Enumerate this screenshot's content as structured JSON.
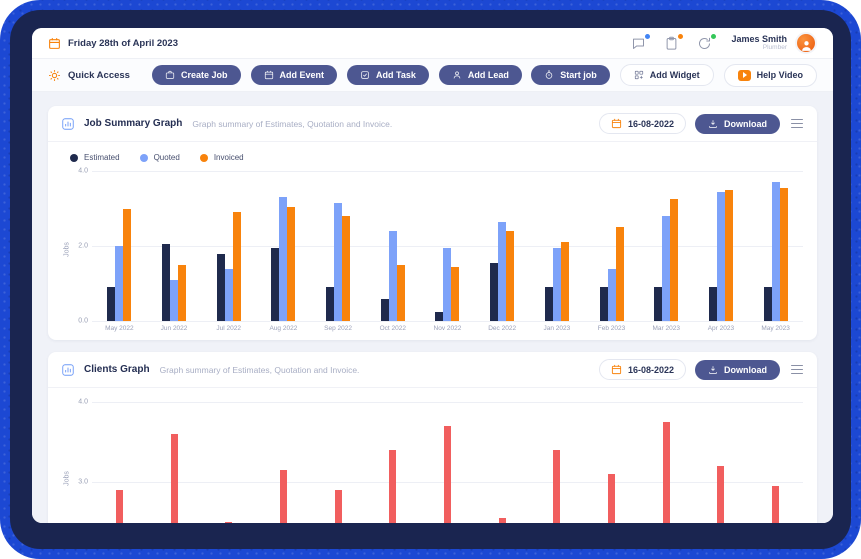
{
  "topbar": {
    "date_label": "Friday 28th of April 2023",
    "notification_icons": [
      {
        "name": "chat",
        "badge_color": "#4285f4"
      },
      {
        "name": "clipboard",
        "badge_color": "#f8830c"
      },
      {
        "name": "refresh",
        "badge_color": "#34c759"
      }
    ],
    "user": {
      "name": "James Smith",
      "role": "Plumber"
    }
  },
  "toolbar": {
    "quick_access_label": "Quick Access",
    "left_buttons": [
      {
        "label": "Create Job",
        "icon": "briefcase"
      },
      {
        "label": "Add Event",
        "icon": "calendar"
      },
      {
        "label": "Add Task",
        "icon": "task-check"
      },
      {
        "label": "Add Lead",
        "icon": "person"
      }
    ],
    "start_job_label": "Start job",
    "add_widget_label": "Add Widget",
    "help_video_label": "Help Video"
  },
  "job_summary_card": {
    "title": "Job Summary Graph",
    "subtitle": "Graph summary of Estimates, Quotation and Invoice.",
    "date_value": "16-08-2022",
    "download_label": "Download",
    "legend": [
      {
        "label": "Estimated",
        "color": "#1f2a4d"
      },
      {
        "label": "Quoted",
        "color": "#7da2f9"
      },
      {
        "label": "Invoiced",
        "color": "#f8830c"
      }
    ]
  },
  "clients_card": {
    "title": "Clients Graph",
    "subtitle": "Graph summary of Estimates, Quotation and Invoice.",
    "date_value": "16-08-2022",
    "download_label": "Download"
  },
  "chart_data": [
    {
      "type": "bar",
      "title": "Job Summary Graph",
      "ylabel": "Jobs",
      "ylim": [
        0,
        4
      ],
      "yticks": [
        "4.0",
        "2.0",
        "0.0"
      ],
      "grid": true,
      "legend_position": "top-left",
      "categories": [
        "May 2022",
        "Jun 2022",
        "Jul 2022",
        "Aug 2022",
        "Sep 2022",
        "Oct 2022",
        "Nov 2022",
        "Dec 2022",
        "Jan 2023",
        "Feb 2023",
        "Mar 2023",
        "Apr 2023",
        "May 2023"
      ],
      "series": [
        {
          "name": "Estimated",
          "color": "#1f2a4d",
          "values": [
            0.9,
            2.05,
            1.8,
            1.95,
            0.9,
            0.6,
            0.25,
            1.55,
            0.9,
            0.9,
            0.9,
            0.9,
            0.9
          ]
        },
        {
          "name": "Quoted",
          "color": "#7da2f9",
          "values": [
            2.0,
            1.1,
            1.4,
            3.3,
            3.15,
            2.4,
            1.95,
            2.65,
            1.95,
            1.4,
            2.8,
            3.45,
            3.7
          ]
        },
        {
          "name": "Invoiced",
          "color": "#f8830c",
          "values": [
            3.0,
            1.5,
            2.9,
            3.05,
            2.8,
            1.5,
            1.45,
            2.4,
            2.1,
            2.5,
            3.25,
            3.5,
            3.55
          ]
        }
      ]
    },
    {
      "type": "bar",
      "title": "Clients Graph",
      "ylabel": "Jobs",
      "color": "#f15e5e",
      "yticks": [
        "4.0",
        "3.0"
      ],
      "visible_value_range": [
        2.19,
        4.0
      ],
      "x_labels_visible": false,
      "grid": true,
      "values": [
        2.9,
        3.6,
        2.5,
        3.15,
        2.9,
        3.4,
        3.7,
        2.55,
        3.4,
        3.1,
        3.75,
        3.2,
        2.95
      ]
    }
  ]
}
